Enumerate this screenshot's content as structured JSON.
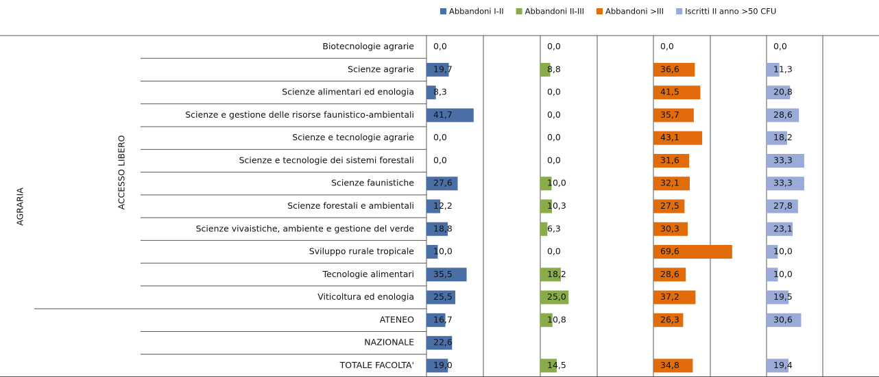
{
  "chart_data": {
    "type": "bar",
    "orientation": "horizontal",
    "row_groups": {
      "outer": "AGRARIA",
      "inner": "ACCESSO LIBERO"
    },
    "categories": [
      "Biotecnologie agrarie",
      "Scienze agrarie",
      "Scienze alimentari ed enologia",
      "Scienze e gestione delle risorse faunistico-ambientali",
      "Scienze e tecnologie agrarie",
      "Scienze e tecnologie dei sistemi forestali",
      "Scienze faunistiche",
      "Scienze forestali e ambientali",
      "Scienze vivaistiche, ambiente e gestione del verde",
      "Sviluppo rurale tropicale",
      "Tecnologie alimentari",
      "Viticoltura ed enologia",
      "ATENEO",
      "NAZIONALE",
      "TOTALE FACOLTA'"
    ],
    "xlim": [
      0,
      100
    ],
    "series": [
      {
        "name": "Abbandoni I-II",
        "color": "#4a6fa5",
        "values": [
          0,
          19.7,
          8.3,
          41.7,
          0,
          0,
          27.6,
          12.2,
          18.8,
          10,
          35.5,
          25.5,
          16.7,
          22.6,
          19
        ],
        "value_labels": [
          "0,0",
          "19,7",
          "8,3",
          "41,7",
          "0,0",
          "0,0",
          "27,6",
          "12,2",
          "18,8",
          "10,0",
          "35,5",
          "25,5",
          "16,7",
          "22,6",
          "19,0"
        ]
      },
      {
        "name": "Abbandoni II-III",
        "color": "#8aab4a",
        "values": [
          0,
          8.8,
          0,
          0,
          0,
          0,
          10,
          10.3,
          6.3,
          0,
          18.2,
          25,
          10.8,
          null,
          14.5
        ],
        "value_labels": [
          "0,0",
          "8,8",
          "0,0",
          "0,0",
          "0,0",
          "0,0",
          "10,0",
          "10,3",
          "6,3",
          "0,0",
          "18,2",
          "25,0",
          "10,8",
          null,
          "14,5"
        ]
      },
      {
        "name": "Abbandoni >III",
        "color": "#e36c0a",
        "values": [
          0,
          36.6,
          41.5,
          35.7,
          43.1,
          31.6,
          32.1,
          27.5,
          30.3,
          69.6,
          28.6,
          37.2,
          26.3,
          null,
          34.8
        ],
        "value_labels": [
          "0,0",
          "36,6",
          "41,5",
          "35,7",
          "43,1",
          "31,6",
          "32,1",
          "27,5",
          "30,3",
          "69,6",
          "28,6",
          "37,2",
          "26,3",
          null,
          "34,8"
        ]
      },
      {
        "name": "Iscritti II anno >50 CFU",
        "color": "#99abd6",
        "values": [
          0,
          11.3,
          20.8,
          28.6,
          18.2,
          33.3,
          33.3,
          27.8,
          23.1,
          10,
          10,
          19.5,
          30.6,
          null,
          19.4
        ],
        "value_labels": [
          "0,0",
          "11,3",
          "20,8",
          "28,6",
          "18,2",
          "33,3",
          "33,3",
          "27,8",
          "23,1",
          "10,0",
          "10,0",
          "19,5",
          "30,6",
          null,
          "19,4"
        ]
      }
    ]
  }
}
